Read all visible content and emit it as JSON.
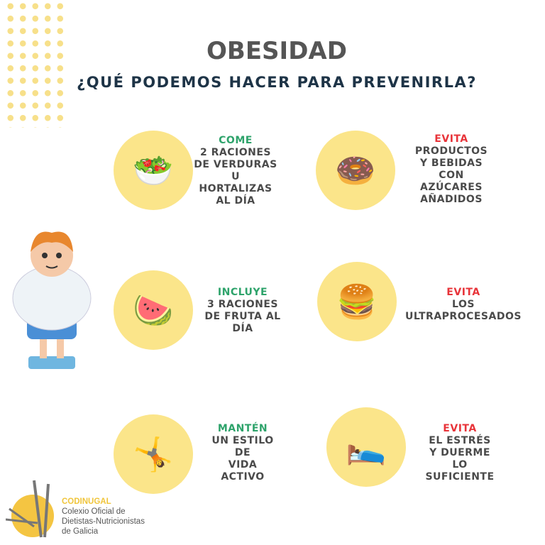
{
  "title": "OBESIDAD",
  "subtitle": "¿QUÉ PODEMOS HACER PARA PREVENIRLA?",
  "tips": [
    {
      "action": "COME",
      "text": [
        "2 RACIONES",
        "DE VERDURAS",
        "U",
        "HORTALIZAS",
        "AL DÍA"
      ],
      "icon": "girl-eating-vegetables-icon"
    },
    {
      "action": "EVITA",
      "text": [
        "PRODUCTOS",
        "Y BEBIDAS",
        "CON",
        "AZÚCARES",
        "AÑADIDOS"
      ],
      "icon": "sugary-foods-icon"
    },
    {
      "action": "INCLUYE",
      "text": [
        "3 RACIONES",
        "DE FRUTA AL",
        "DÍA"
      ],
      "icon": "boy-eating-fruit-icon"
    },
    {
      "action": "EVITA",
      "text": [
        "LOS",
        "ULTRAPROCESADOS"
      ],
      "icon": "fast-food-icon"
    },
    {
      "action": "MANTÉN",
      "text": [
        "UN ESTILO",
        "DE",
        "VIDA",
        "ACTIVO"
      ],
      "icon": "active-child-icon"
    },
    {
      "action": "EVITA",
      "text": [
        "EL ESTRÉS",
        "Y DUERME",
        "LO",
        "SUFICIENTE"
      ],
      "icon": "sleeping-child-icon"
    }
  ],
  "org": {
    "name": "CODINUGAL",
    "lines": [
      "Colexio Oficial de",
      "Dietistas-Nutricionistas",
      "de Galicia"
    ]
  },
  "colors": {
    "green": "#2ea36b",
    "red": "#e8343a",
    "yellow": "#fbe58a",
    "text": "#4a4a4a"
  }
}
